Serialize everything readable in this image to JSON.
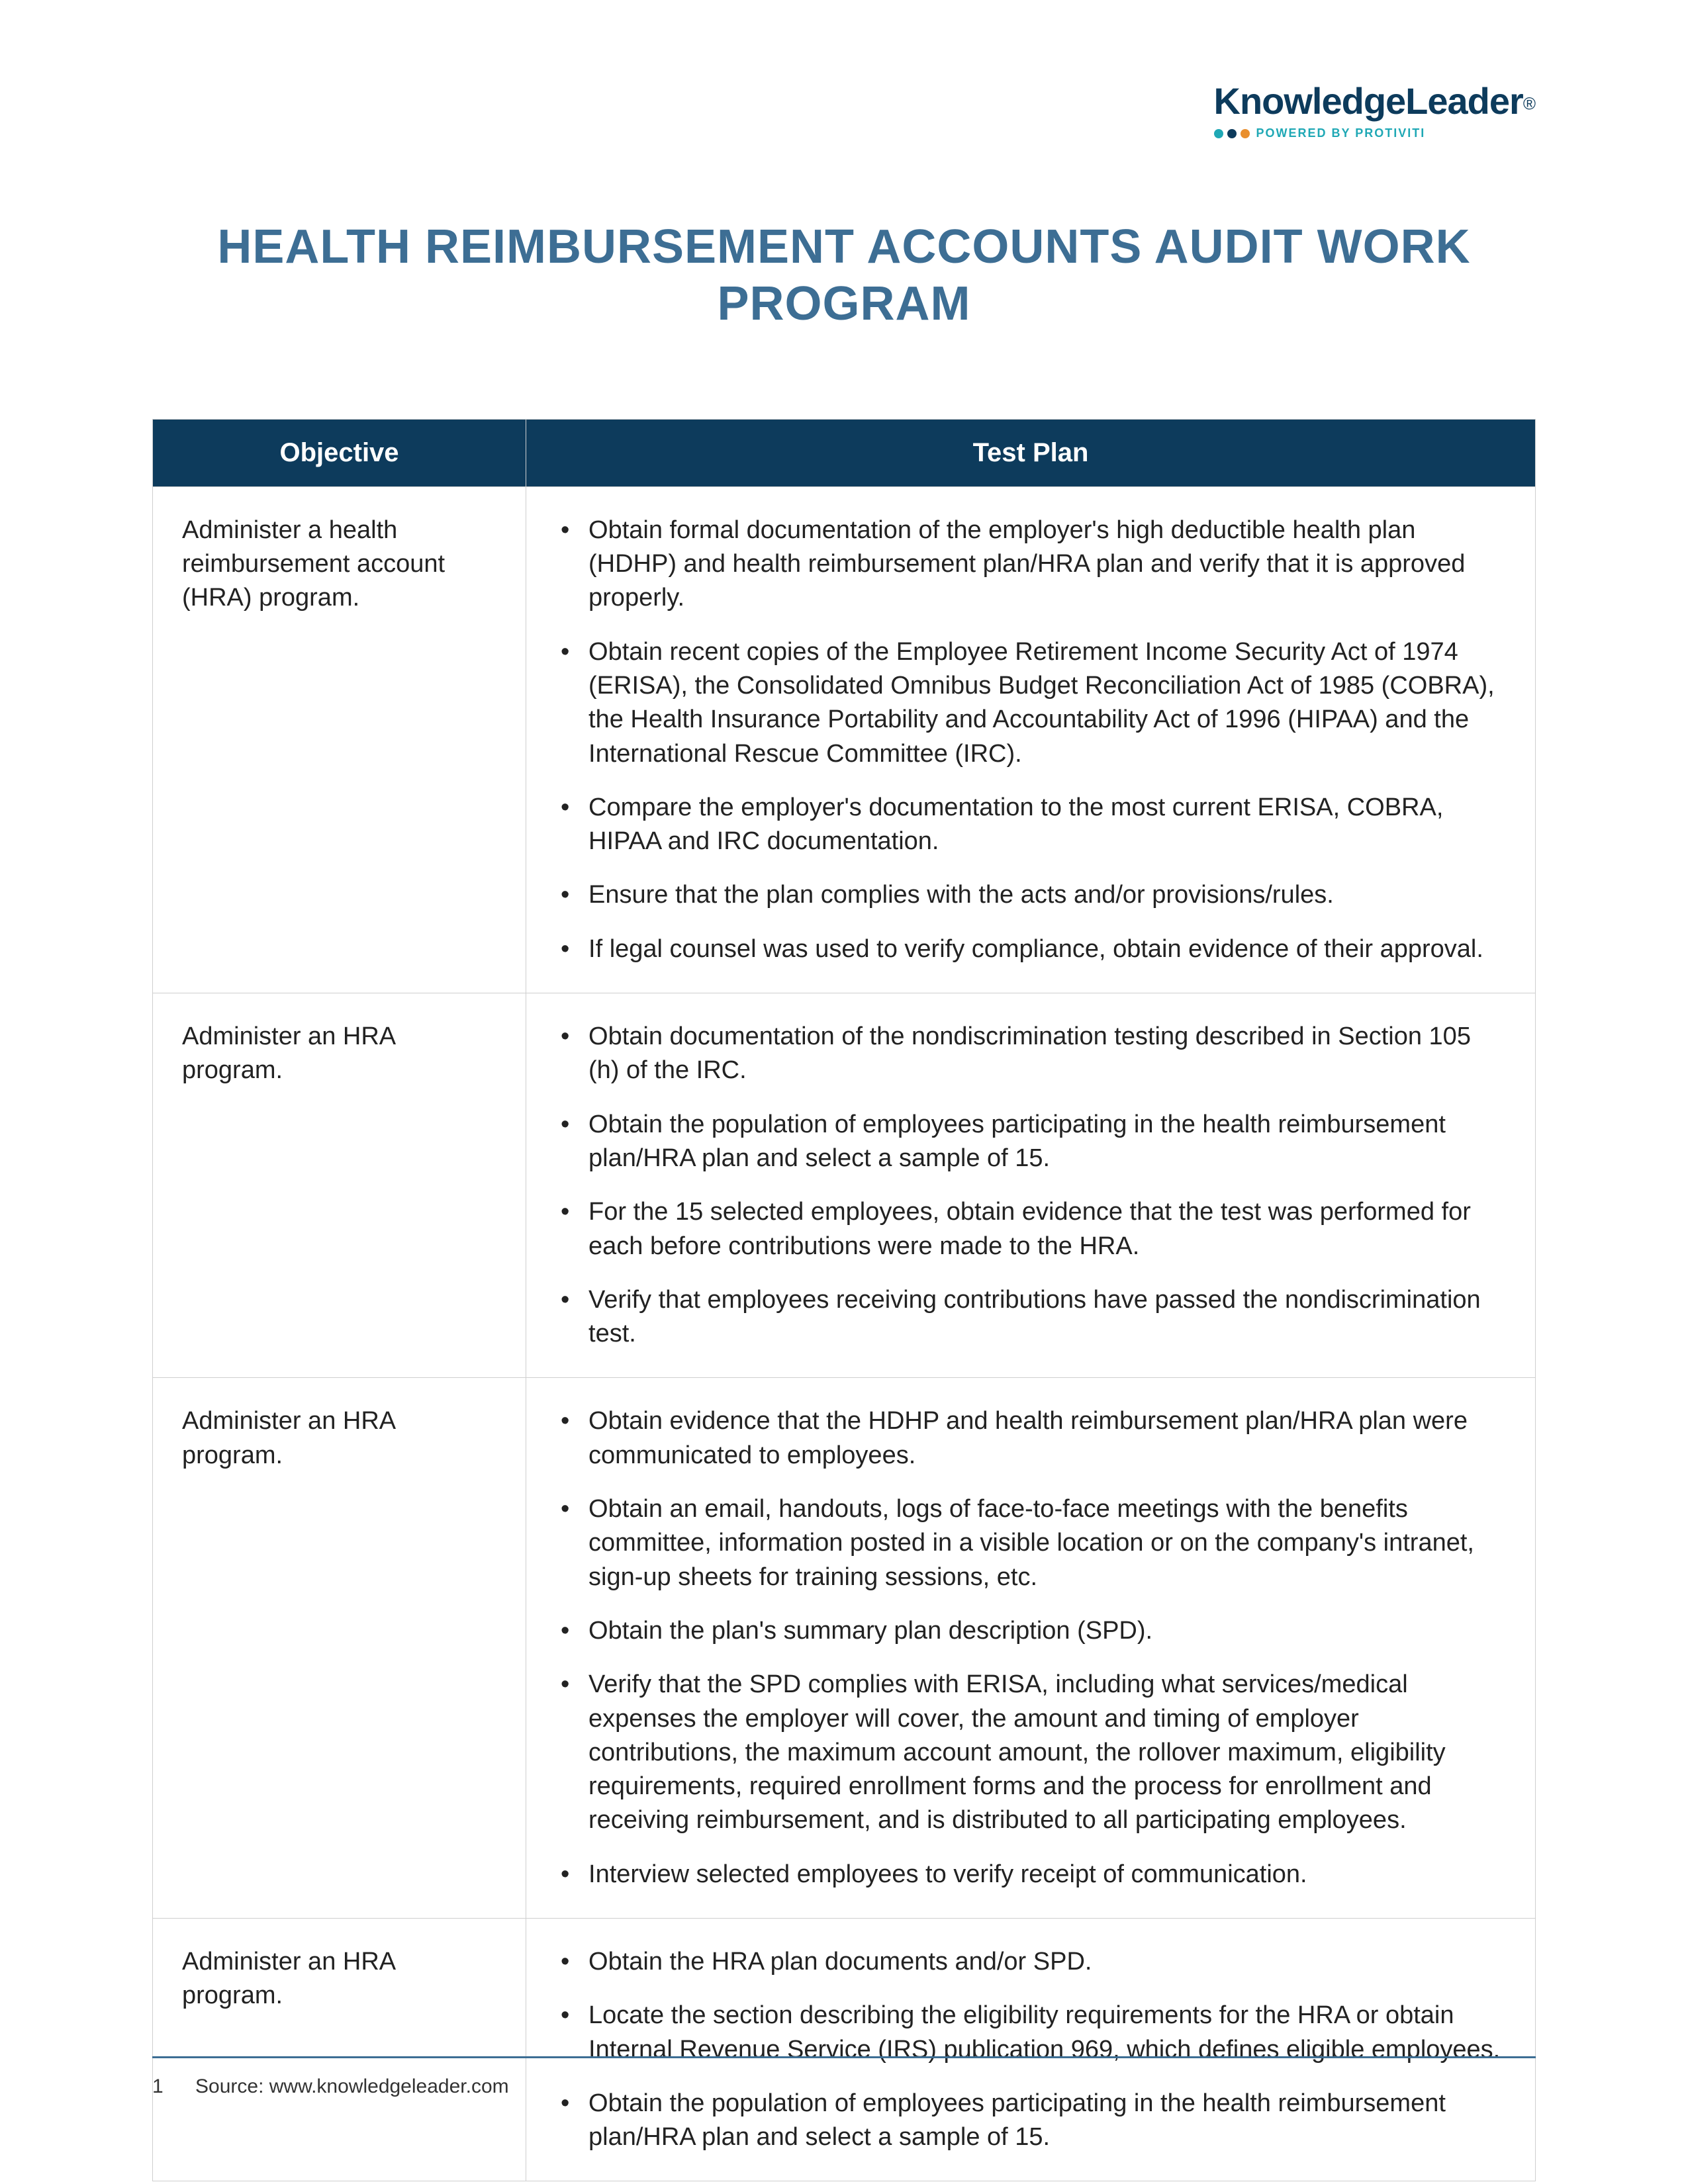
{
  "logo": {
    "main": "KnowledgeLeader",
    "reg": "®",
    "powered": "POWERED BY PROTIVITI",
    "dot_colors": [
      "#1fa8b5",
      "#0d3b5c",
      "#e98f2e"
    ]
  },
  "title": "HEALTH REIMBURSEMENT ACCOUNTS AUDIT WORK PROGRAM",
  "columns": {
    "objective": "Objective",
    "testplan": "Test Plan"
  },
  "rows": [
    {
      "objective": "Administer a health reimbursement account (HRA) program.",
      "items": [
        "Obtain formal documentation of the employer's high deductible health plan (HDHP) and health reimbursement plan/HRA plan and verify that it is approved properly.",
        "Obtain recent copies of the Employee Retirement Income Security Act of 1974 (ERISA), the Consolidated Omnibus Budget Reconciliation Act of 1985 (COBRA), the Health Insurance Portability and Accountability Act of 1996 (HIPAA) and the International Rescue Committee (IRC).",
        "Compare the employer's documentation to the most current ERISA, COBRA, HIPAA and IRC documentation.",
        "Ensure that the plan complies with the acts and/or provisions/rules.",
        "If legal counsel was used to verify compliance, obtain evidence of their approval."
      ]
    },
    {
      "objective": "Administer an HRA program.",
      "items": [
        "Obtain documentation of the nondiscrimination testing described in Section 105 (h) of the IRC.",
        "Obtain the population of employees participating in the health reimbursement plan/HRA plan and select a sample of 15.",
        "For the 15 selected employees, obtain evidence that the test was performed for each before contributions were made to the HRA.",
        "Verify that employees receiving contributions have passed the nondiscrimination test."
      ]
    },
    {
      "objective": "Administer an HRA program.",
      "items": [
        "Obtain evidence that the HDHP and health reimbursement plan/HRA plan were communicated to employees.",
        "Obtain an email, handouts, logs of face-to-face meetings with the benefits committee, information posted in a visible location or on the company's intranet, sign-up sheets for training sessions, etc.",
        "Obtain the plan's summary plan description (SPD).",
        "Verify that the SPD complies with ERISA, including what services/medical expenses the employer will cover, the amount and timing of employer contributions, the maximum account amount, the rollover maximum, eligibility requirements, required enrollment forms and the process for enrollment and receiving reimbursement, and is distributed to all participating employees.",
        "Interview selected employees to verify receipt of communication."
      ]
    },
    {
      "objective": "Administer an HRA program.",
      "items": [
        "Obtain the HRA plan documents and/or SPD.",
        "Locate the section describing the eligibility requirements for the HRA or obtain Internal Revenue Service (IRS) publication 969, which defines eligible employees.",
        "Obtain the population of employees participating in the health reimbursement plan/HRA plan and select a sample of 15."
      ]
    }
  ],
  "footer": {
    "page": "1",
    "source": "Source: www.knowledgeleader.com"
  },
  "colors": {
    "header_bg": "#0d3b5c",
    "title_color": "#3d6e94",
    "border": "#cfcfcf",
    "text": "#222222",
    "accent_teal": "#1fa8b5"
  },
  "typography": {
    "title_fontsize": 72,
    "th_fontsize": 40,
    "td_fontsize": 38,
    "footer_fontsize": 30,
    "logo_fontsize": 56
  }
}
